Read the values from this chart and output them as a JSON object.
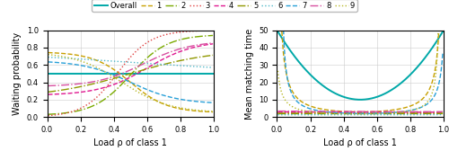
{
  "legend_labels": [
    "Overall",
    "1",
    "2",
    "3",
    "4",
    "5",
    "6",
    "7",
    "8",
    "9"
  ],
  "colors": [
    "#00a8a8",
    "#c8a000",
    "#7aaa00",
    "#e04040",
    "#e01890",
    "#909800",
    "#50b8c8",
    "#28a0d8",
    "#d850a0",
    "#b8b828"
  ],
  "linestyles": [
    "-",
    "--",
    "-.",
    ":",
    "--",
    "-.",
    ":",
    "--",
    "-.",
    ":"
  ],
  "linewidths": [
    1.4,
    1.0,
    1.0,
    1.0,
    1.0,
    1.0,
    1.0,
    1.0,
    1.0,
    1.0
  ],
  "N": 9,
  "n_pts": 400,
  "left_ylabel": "Waiting probability",
  "right_ylabel": "Mean matching time",
  "xlabel": "Load ρ of class 1",
  "left_ylim": [
    0,
    1
  ],
  "right_ylim": [
    0,
    50
  ],
  "left_yticks": [
    0,
    0.2,
    0.4,
    0.6,
    0.8,
    1
  ],
  "right_yticks": [
    0,
    10,
    20,
    30,
    40,
    50
  ],
  "xticks": [
    0,
    0.2,
    0.4,
    0.6,
    0.8,
    1
  ]
}
